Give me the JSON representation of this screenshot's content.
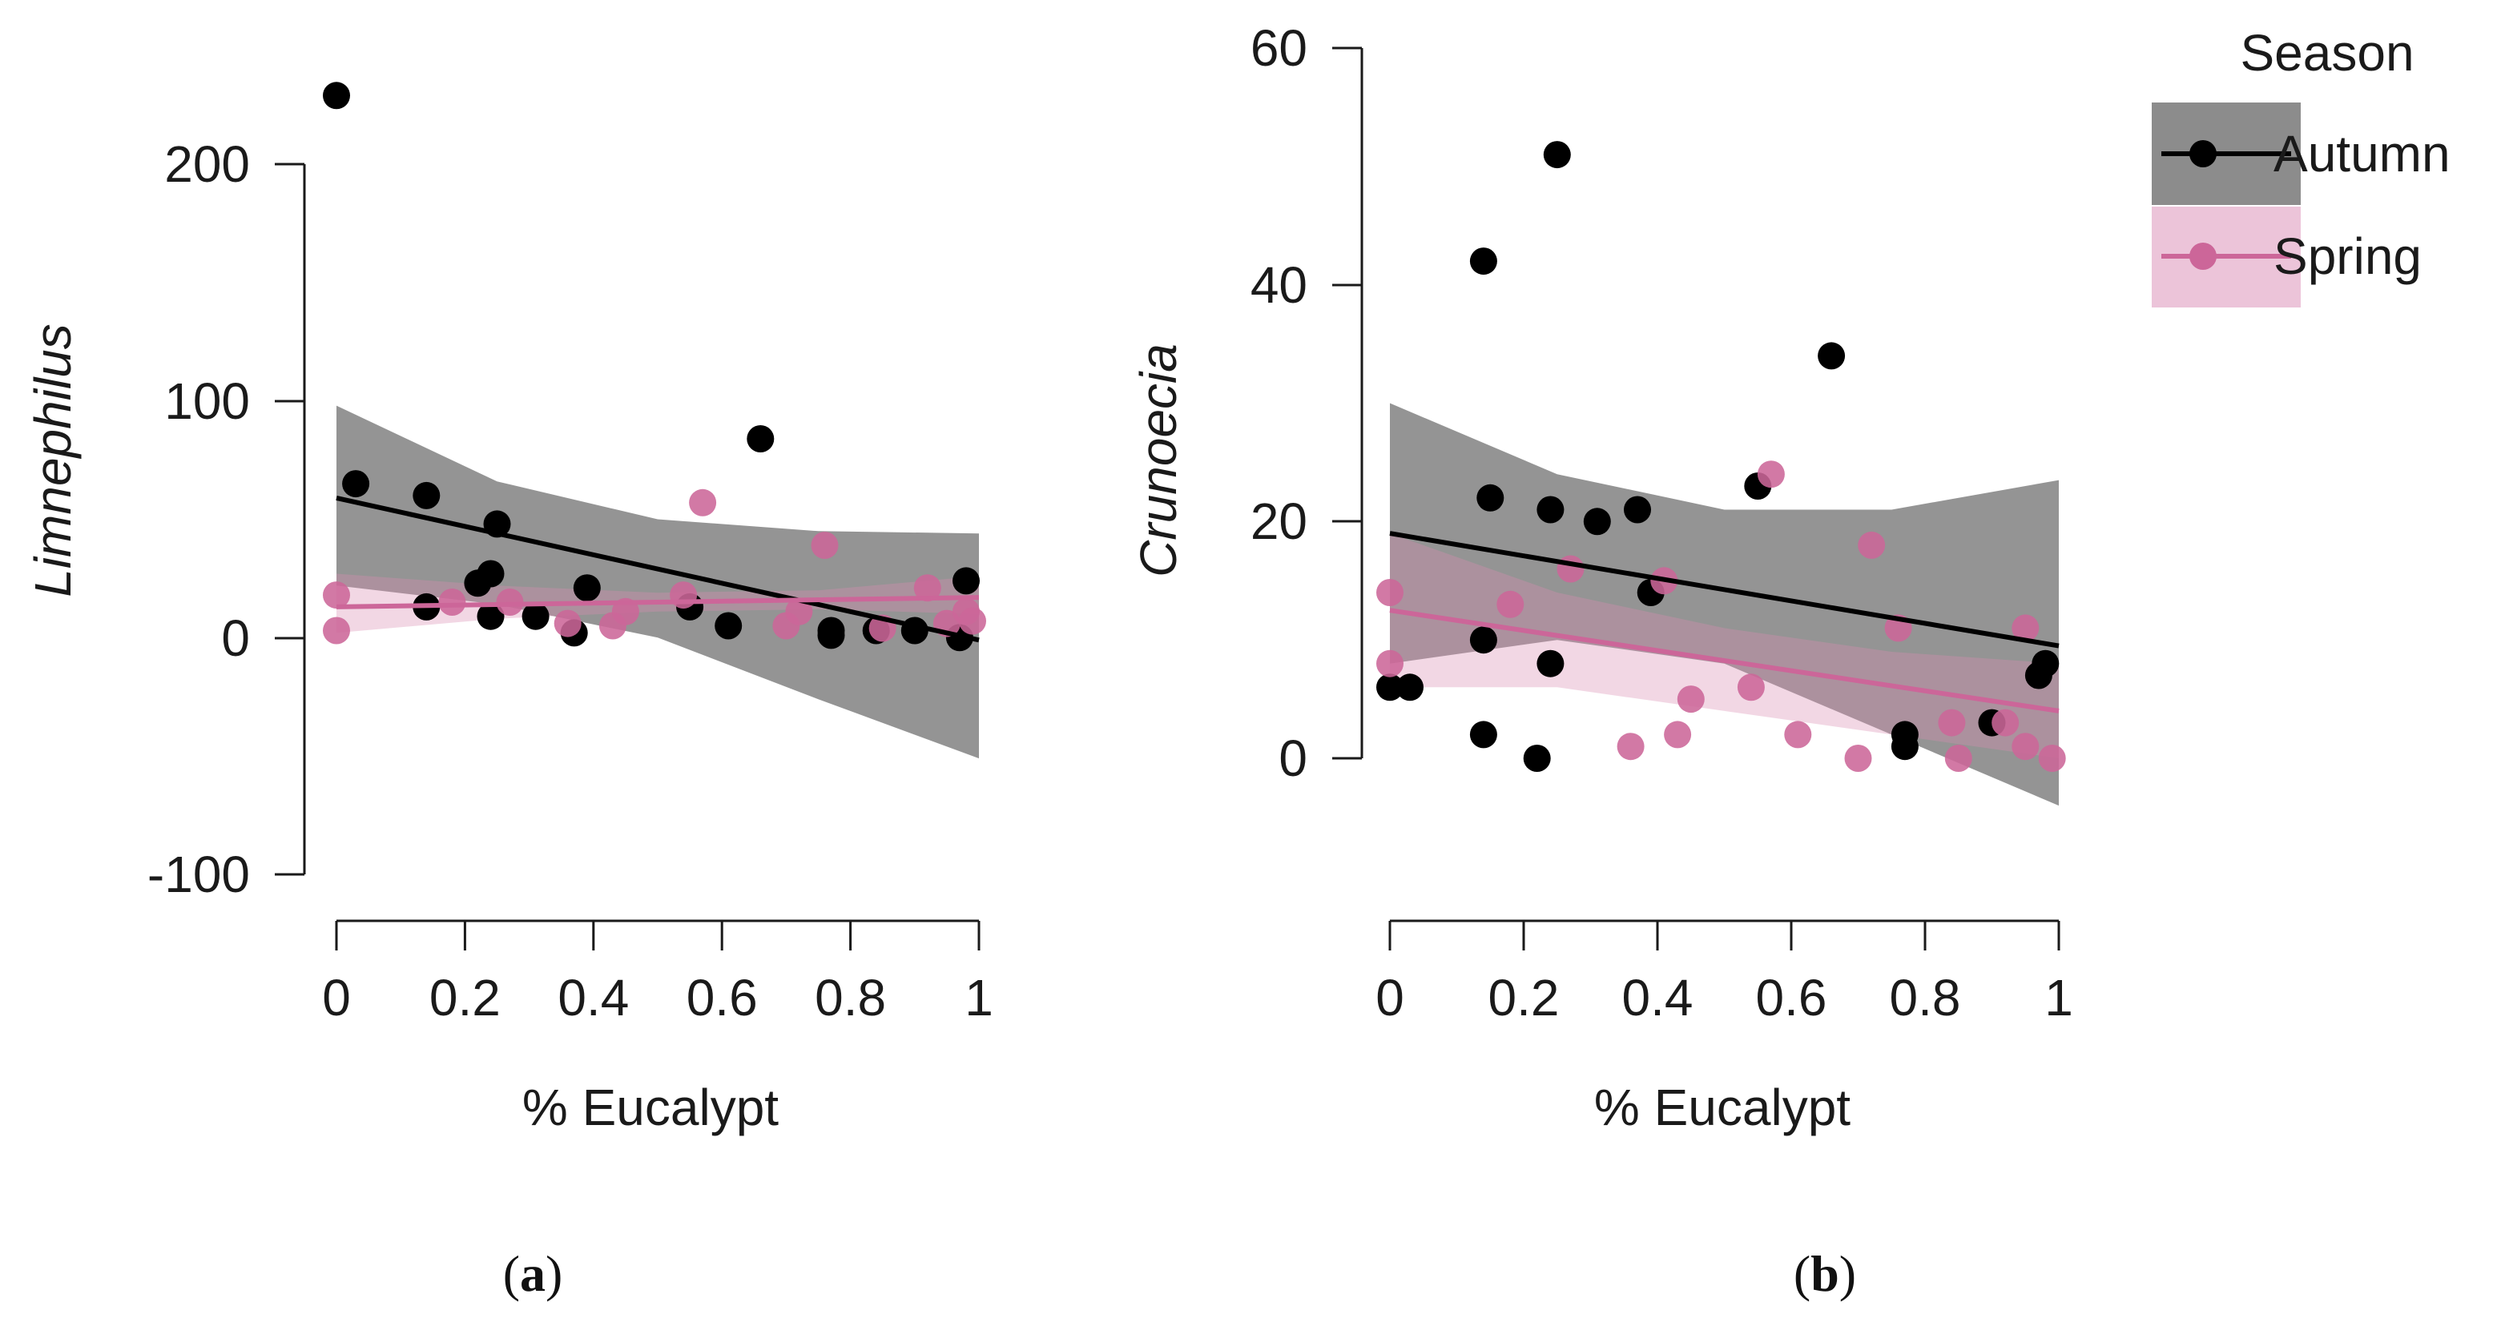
{
  "figure": {
    "legend": {
      "title": "Season",
      "entries": [
        {
          "name": "Autumn",
          "color": "#000000",
          "band_color": "#8c8c8c"
        },
        {
          "name": "Spring",
          "color": "#cc6699",
          "band_color": "#ecc4d9"
        }
      ]
    },
    "panels": [
      {
        "label_open": "(",
        "label_letter": "a",
        "label_close": ")"
      },
      {
        "label_open": "(",
        "label_letter": "b",
        "label_close": ")"
      }
    ]
  },
  "chart_data": [
    {
      "type": "scatter",
      "title": "",
      "xlabel": "% Eucalypt",
      "ylabel": "Limnephilus",
      "xlim": [
        0,
        1
      ],
      "ylim": [
        -100,
        200
      ],
      "xticks": [
        0,
        0.2,
        0.4,
        0.6,
        0.8,
        1
      ],
      "xtick_labels": [
        "0",
        "0.2",
        "0.4",
        "0.6",
        "0.8",
        "1"
      ],
      "yticks": [
        -100,
        0,
        100,
        200
      ],
      "ytick_labels": [
        "-100",
        "0",
        "100",
        "200"
      ],
      "grid": false,
      "series": [
        {
          "name": "Autumn",
          "x": [
            0,
            0.03,
            0.14,
            0.14,
            0.22,
            0.24,
            0.24,
            0.25,
            0.31,
            0.37,
            0.39,
            0.55,
            0.61,
            0.66,
            0.77,
            0.77,
            0.84,
            0.9,
            0.97,
            0.98
          ],
          "y": [
            229,
            65,
            60,
            13,
            23,
            27,
            9,
            48,
            9,
            2,
            21,
            13,
            5,
            84,
            3,
            1,
            3,
            3,
            0,
            24
          ],
          "fit": {
            "x": [
              0,
              1
            ],
            "y": [
              59,
              -1
            ]
          },
          "ci": {
            "x": [
              0,
              0.25,
              0.5,
              0.75,
              1
            ],
            "lower": [
              22,
              14,
              0,
              -26,
              -51
            ],
            "upper": [
              98,
              66,
              50,
              45,
              44
            ]
          }
        },
        {
          "name": "Spring",
          "x": [
            0,
            0,
            0.18,
            0.27,
            0.36,
            0.43,
            0.45,
            0.54,
            0.57,
            0.7,
            0.72,
            0.76,
            0.85,
            0.92,
            0.95,
            0.98,
            0.99
          ],
          "y": [
            18,
            3,
            15,
            15,
            6,
            5,
            11,
            18,
            57,
            5,
            11,
            39,
            4,
            21,
            6,
            11,
            7
          ],
          "fit": {
            "x": [
              0,
              1
            ],
            "y": [
              13,
              17
            ]
          },
          "ci": {
            "x": [
              0,
              0.25,
              0.5,
              0.75,
              1
            ],
            "lower": [
              2,
              8,
              11,
              12,
              10
            ],
            "upper": [
              27,
              22,
              19,
              20,
              26
            ]
          }
        }
      ]
    },
    {
      "type": "scatter",
      "title": "",
      "xlabel": "% Eucalypt",
      "ylabel": "Crunoecia",
      "xlim": [
        0,
        1
      ],
      "ylim": [
        0,
        60
      ],
      "xticks": [
        0,
        0.2,
        0.4,
        0.6,
        0.8,
        1
      ],
      "xtick_labels": [
        "0",
        "0.2",
        "0.4",
        "0.6",
        "0.8",
        "1"
      ],
      "yticks": [
        0,
        20,
        40,
        60
      ],
      "ytick_labels": [
        "0",
        "20",
        "40",
        "60"
      ],
      "grid": false,
      "series": [
        {
          "name": "Autumn",
          "x": [
            0,
            0.03,
            0.14,
            0.14,
            0.14,
            0.15,
            0.22,
            0.24,
            0.24,
            0.25,
            0.31,
            0.37,
            0.39,
            0.55,
            0.66,
            0.77,
            0.77,
            0.9,
            0.97,
            0.98
          ],
          "y": [
            6,
            6,
            42,
            10,
            2,
            22,
            0,
            21,
            8,
            51,
            20,
            21,
            14,
            23,
            34,
            2,
            1,
            3,
            7,
            8
          ],
          "fit": {
            "x": [
              0,
              1
            ],
            "y": [
              19,
              9.5
            ]
          },
          "ci": {
            "x": [
              0,
              0.25,
              0.5,
              0.75,
              1
            ],
            "lower": [
              8,
              10,
              8,
              2,
              -4
            ],
            "upper": [
              30,
              24,
              21,
              21,
              23.5
            ]
          }
        },
        {
          "name": "Spring",
          "x": [
            0,
            0,
            0.18,
            0.27,
            0.36,
            0.41,
            0.43,
            0.45,
            0.54,
            0.57,
            0.61,
            0.7,
            0.72,
            0.76,
            0.84,
            0.85,
            0.92,
            0.95,
            0.95,
            0.99
          ],
          "y": [
            14,
            8,
            13,
            16,
            1,
            15,
            2,
            5,
            6,
            24,
            2,
            0,
            18,
            11,
            3,
            0,
            3,
            11,
            1,
            0
          ],
          "fit": {
            "x": [
              0,
              1
            ],
            "y": [
              12.5,
              4
            ]
          },
          "ci": {
            "x": [
              0,
              0.25,
              0.5,
              0.75,
              1
            ],
            "lower": [
              6,
              6,
              4,
              2,
              0
            ],
            "upper": [
              19,
              14,
              11,
              9,
              8
            ]
          }
        }
      ]
    }
  ]
}
